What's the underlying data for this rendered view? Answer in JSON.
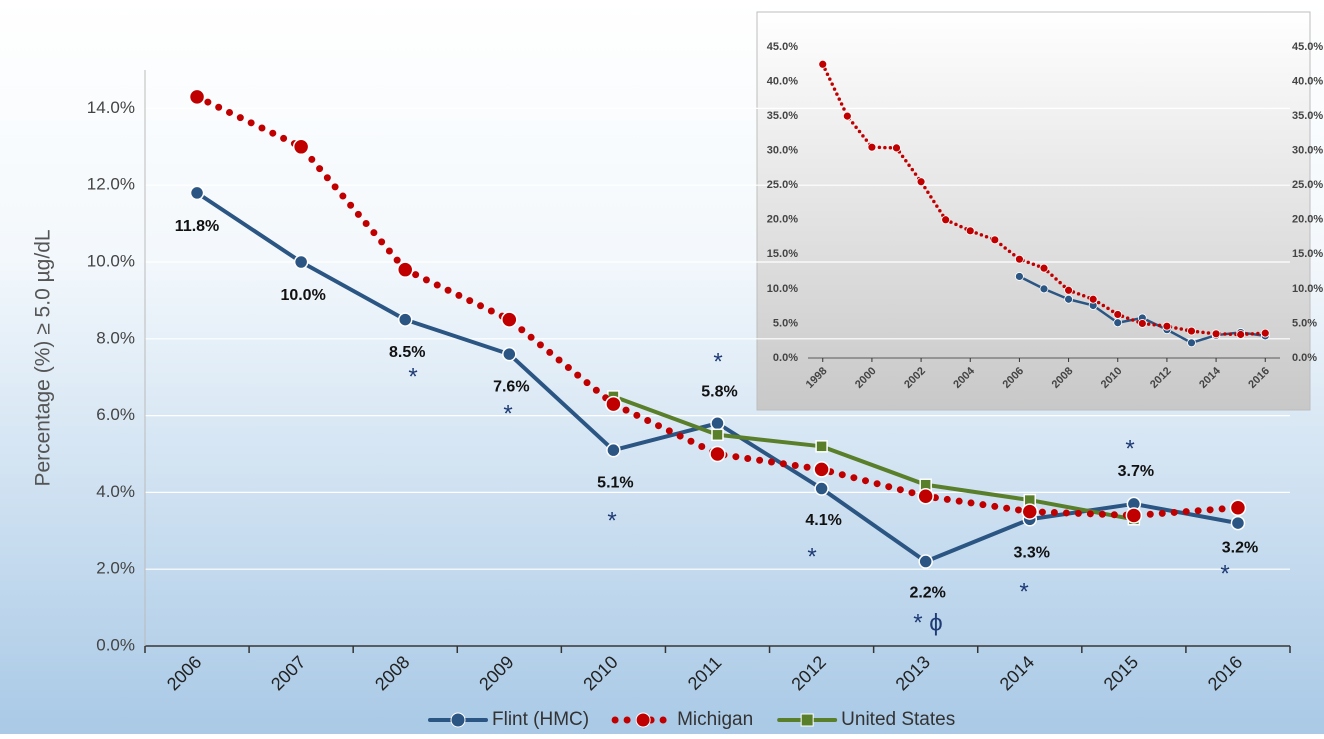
{
  "chart_data": [
    {
      "type": "line",
      "y_label": "Percentage (%) ≥ 5.0 µg/dL",
      "categories": [
        "2006",
        "2007",
        "2008",
        "2009",
        "2010",
        "2011",
        "2012",
        "2013",
        "2014",
        "2015",
        "2016"
      ],
      "series": [
        {
          "name": "Flint (HMC)",
          "color": "#2b5582",
          "linestyle": "solid",
          "marker": "circle",
          "values": [
            11.8,
            10.0,
            8.5,
            7.6,
            5.1,
            5.8,
            4.1,
            2.2,
            3.3,
            3.7,
            3.2
          ],
          "value_labels": [
            "11.8%",
            "10.0%",
            "8.5%",
            "7.6%",
            "5.1%",
            "5.8%",
            "4.1%",
            "2.2%",
            "3.3%",
            "3.7%",
            "3.2%"
          ]
        },
        {
          "name": "Michigan",
          "color": "#c00000",
          "linestyle": "dotted",
          "marker": "circle",
          "values": [
            14.3,
            13.0,
            9.8,
            8.5,
            6.3,
            5.0,
            4.6,
            3.9,
            3.5,
            3.4,
            3.6
          ]
        },
        {
          "name": "United States",
          "color": "#5a7f2b",
          "linestyle": "solid",
          "marker": "square",
          "values": [
            null,
            null,
            null,
            null,
            6.5,
            5.5,
            5.2,
            4.2,
            3.8,
            3.3,
            null
          ]
        }
      ],
      "ylim": [
        0,
        15
      ],
      "yticks": [
        {
          "value": 0,
          "label": "0.0%"
        },
        {
          "value": 2,
          "label": "2.0%"
        },
        {
          "value": 4,
          "label": "4.0%"
        },
        {
          "value": 6,
          "label": "6.0%"
        },
        {
          "value": 8,
          "label": "8.0%"
        },
        {
          "value": 10,
          "label": "10.0%"
        },
        {
          "value": 12,
          "label": "12.0%"
        },
        {
          "value": 14,
          "label": "14.0%"
        }
      ],
      "grid": true,
      "legend": "bottom",
      "annotations": [
        "*",
        "*",
        "*",
        "*",
        "*",
        "* ϕ",
        "*",
        "*",
        "*"
      ]
    },
    {
      "type": "line",
      "x": [
        1998,
        1999,
        2000,
        2001,
        2002,
        2003,
        2004,
        2005,
        2006,
        2007,
        2008,
        2009,
        2010,
        2011,
        2012,
        2013,
        2014,
        2015,
        2016
      ],
      "series": [
        {
          "name": "Flint (HMC)",
          "color": "#2b5582",
          "linestyle": "solid",
          "marker": "circle",
          "values": [
            null,
            null,
            null,
            null,
            null,
            null,
            null,
            null,
            11.8,
            10.0,
            8.5,
            7.6,
            5.1,
            5.8,
            4.1,
            2.2,
            3.3,
            3.7,
            3.2
          ]
        },
        {
          "name": "Michigan",
          "color": "#c00000",
          "linestyle": "dotted",
          "marker": "circle",
          "values": [
            42.5,
            35.0,
            30.5,
            30.4,
            25.5,
            20.0,
            18.4,
            17.1,
            14.3,
            13.0,
            9.8,
            8.5,
            6.3,
            5.0,
            4.6,
            3.9,
            3.5,
            3.4,
            3.6
          ]
        }
      ],
      "xlim": [
        1997.4,
        2016.6
      ],
      "xticks": [
        1998,
        2000,
        2002,
        2004,
        2006,
        2008,
        2010,
        2012,
        2014,
        2016
      ],
      "ylim": [
        0,
        45
      ],
      "yticks": [
        {
          "value": 0,
          "label": "0.0%"
        },
        {
          "value": 5,
          "label": "5.0%"
        },
        {
          "value": 10,
          "label": "10.0%"
        },
        {
          "value": 15,
          "label": "15.0%"
        },
        {
          "value": 20,
          "label": "20.0%"
        },
        {
          "value": 25,
          "label": "25.0%"
        },
        {
          "value": 30,
          "label": "30.0%"
        },
        {
          "value": 35,
          "label": "35.0%"
        },
        {
          "value": 40,
          "label": "40.0%"
        },
        {
          "value": 45,
          "label": "45.0%"
        }
      ],
      "y2lim": [
        0,
        45
      ],
      "y2ticks": [
        {
          "value": 0,
          "label": "0.0%"
        },
        {
          "value": 5,
          "label": "5.0%"
        },
        {
          "value": 10,
          "label": "10.0%"
        },
        {
          "value": 15,
          "label": "15.0%"
        },
        {
          "value": 20,
          "label": "20.0%"
        },
        {
          "value": 25,
          "label": "25.0%"
        },
        {
          "value": 30,
          "label": "30.0%"
        },
        {
          "value": 35,
          "label": "35.0%"
        },
        {
          "value": 40,
          "label": "40.0%"
        },
        {
          "value": 45,
          "label": "45.0%"
        }
      ],
      "grid": false
    }
  ]
}
